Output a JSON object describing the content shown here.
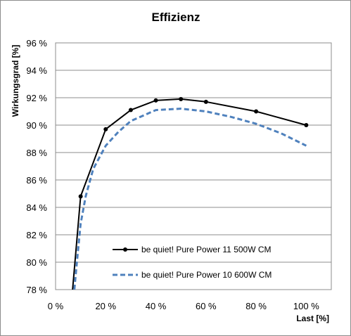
{
  "chart_data": {
    "type": "line",
    "title": "Effizienz",
    "xlabel": "Last [%]",
    "ylabel": "Wirkungsgrad [%]",
    "xlim": [
      0,
      110
    ],
    "ylim": [
      78,
      96
    ],
    "xticks": [
      0,
      20,
      40,
      60,
      80,
      100
    ],
    "yticks": [
      78,
      80,
      82,
      84,
      86,
      88,
      90,
      92,
      94,
      96
    ],
    "xtick_labels": [
      "0 %",
      "20 %",
      "40 %",
      "60 %",
      "80 %",
      "100 %"
    ],
    "ytick_labels": [
      "78 %",
      "80 %",
      "82 %",
      "84 %",
      "86 %",
      "88 %",
      "90 %",
      "92 %",
      "94 %",
      "96 %"
    ],
    "grid": "horizontal",
    "legend": "bottom-center",
    "series": [
      {
        "name": "be quiet! Pure Power 11 500W CM",
        "color": "#000000",
        "style": "solid-markers",
        "x": [
          6.8,
          10,
          20,
          30,
          40,
          50,
          60,
          80,
          100
        ],
        "y": [
          78.0,
          84.8,
          89.7,
          91.1,
          91.8,
          91.9,
          91.7,
          91.0,
          90.0
        ]
      },
      {
        "name": "be quiet! Pure Power 10 600W CM",
        "color": "#4f81bd",
        "style": "dashed",
        "x": [
          7.5,
          8.5,
          10,
          12,
          15,
          20,
          25,
          30,
          40,
          50,
          60,
          70,
          80,
          90,
          100
        ],
        "y": [
          78.0,
          80.0,
          82.8,
          84.8,
          86.8,
          88.5,
          89.5,
          90.3,
          91.1,
          91.2,
          91.0,
          90.6,
          90.1,
          89.4,
          88.5
        ]
      }
    ]
  }
}
